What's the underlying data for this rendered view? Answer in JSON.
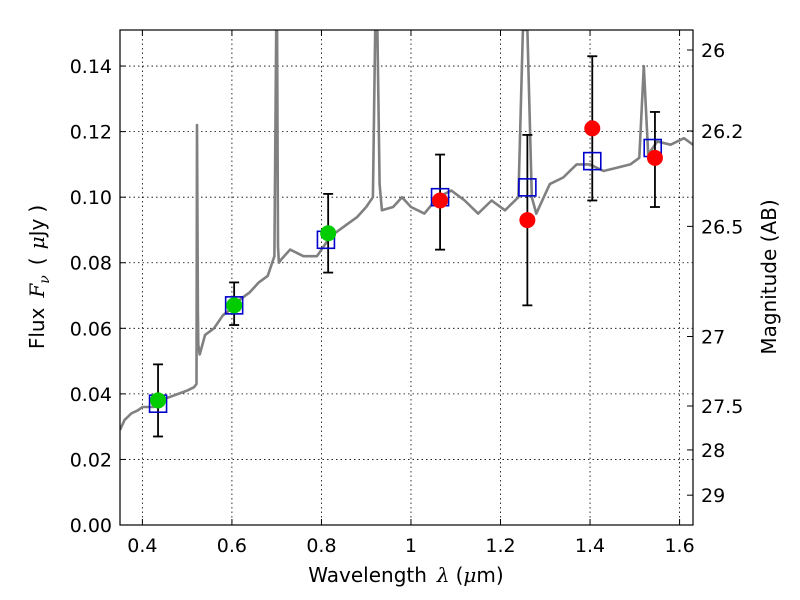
{
  "chart_data": {
    "type": "scatter",
    "xlabel_text": "Wavelength",
    "xlabel_symbol": "λ",
    "xlabel_unit_open": "(",
    "xlabel_unit_mu": "μ",
    "xlabel_unit_rest": "m)",
    "ylabel_text": "Flux",
    "ylabel_symbol": "F",
    "ylabel_symbol_sub": "ν",
    "ylabel_unit_open": "(",
    "ylabel_unit_mu": "μ",
    "ylabel_unit_rest": "Jy",
    "ylabel_unit_close": ")",
    "y2label": "Magnitude (AB)",
    "xlim": [
      0.35,
      1.63
    ],
    "ylim": [
      0.0,
      0.151
    ],
    "grid": true,
    "x_ticks": [
      {
        "value": 0.4,
        "label": "0.4"
      },
      {
        "value": 0.6,
        "label": "0.6"
      },
      {
        "value": 0.8,
        "label": "0.8"
      },
      {
        "value": 1.0,
        "label": "1"
      },
      {
        "value": 1.2,
        "label": "1.2"
      },
      {
        "value": 1.4,
        "label": "1.4"
      },
      {
        "value": 1.6,
        "label": "1.6"
      }
    ],
    "y_ticks": [
      {
        "value": 0.0,
        "label": "0.00"
      },
      {
        "value": 0.02,
        "label": "0.02"
      },
      {
        "value": 0.04,
        "label": "0.04"
      },
      {
        "value": 0.06,
        "label": "0.06"
      },
      {
        "value": 0.08,
        "label": "0.08"
      },
      {
        "value": 0.1,
        "label": "0.10"
      },
      {
        "value": 0.12,
        "label": "0.12"
      },
      {
        "value": 0.14,
        "label": "0.14"
      }
    ],
    "y2_ticks": [
      {
        "flux": 0.1449,
        "label": "26"
      },
      {
        "flux": 0.1202,
        "label": "26.2"
      },
      {
        "flux": 0.0911,
        "label": "26.5"
      },
      {
        "flux": 0.0575,
        "label": "27"
      },
      {
        "flux": 0.0363,
        "label": "27.5"
      },
      {
        "flux": 0.0229,
        "label": "28"
      },
      {
        "flux": 0.0091,
        "label": "29"
      }
    ],
    "series": [
      {
        "name": "model_spectrum",
        "kind": "line",
        "color": "#808080",
        "x": [
          0.35,
          0.36,
          0.375,
          0.39,
          0.4,
          0.41,
          0.425,
          0.44,
          0.46,
          0.48,
          0.5,
          0.515,
          0.521,
          0.522,
          0.524,
          0.525,
          0.528,
          0.54,
          0.56,
          0.58,
          0.6,
          0.62,
          0.64,
          0.66,
          0.68,
          0.695,
          0.699,
          0.701,
          0.703,
          0.705,
          0.71,
          0.73,
          0.76,
          0.79,
          0.82,
          0.85,
          0.88,
          0.9,
          0.915,
          0.92,
          0.925,
          0.93,
          0.935,
          0.96,
          0.98,
          1.0,
          1.03,
          1.06,
          1.09,
          1.12,
          1.15,
          1.18,
          1.21,
          1.24,
          1.25,
          1.26,
          1.27,
          1.28,
          1.29,
          1.31,
          1.34,
          1.37,
          1.4,
          1.43,
          1.46,
          1.49,
          1.51,
          1.52,
          1.53,
          1.55,
          1.58,
          1.61,
          1.63
        ],
        "values": [
          0.029,
          0.032,
          0.034,
          0.035,
          0.036,
          0.036,
          0.036,
          0.038,
          0.039,
          0.04,
          0.041,
          0.042,
          0.043,
          0.122,
          0.065,
          0.055,
          0.052,
          0.058,
          0.06,
          0.064,
          0.066,
          0.069,
          0.071,
          0.074,
          0.076,
          0.082,
          0.151,
          0.151,
          0.085,
          0.08,
          0.081,
          0.084,
          0.082,
          0.082,
          0.088,
          0.091,
          0.094,
          0.097,
          0.1,
          0.151,
          0.151,
          0.104,
          0.096,
          0.097,
          0.1,
          0.097,
          0.095,
          0.1,
          0.102,
          0.099,
          0.095,
          0.099,
          0.096,
          0.1,
          0.151,
          0.151,
          0.1,
          0.095,
          0.098,
          0.104,
          0.106,
          0.11,
          0.11,
          0.108,
          0.109,
          0.11,
          0.112,
          0.14,
          0.113,
          0.117,
          0.116,
          0.118,
          0.116
        ]
      },
      {
        "name": "model_photometry",
        "kind": "square",
        "color": "#0000cc",
        "x": [
          0.435,
          0.605,
          0.81,
          1.065,
          1.26,
          1.405,
          1.54
        ],
        "values": [
          0.037,
          0.067,
          0.087,
          0.1,
          0.103,
          0.111,
          0.115
        ]
      },
      {
        "name": "observed_optical",
        "kind": "circle",
        "color": "#00cc00",
        "x": [
          0.435,
          0.605,
          0.815
        ],
        "values": [
          0.038,
          0.067,
          0.089
        ],
        "err_low": [
          0.011,
          0.006,
          0.012
        ],
        "err_high": [
          0.011,
          0.007,
          0.012
        ]
      },
      {
        "name": "observed_nir",
        "kind": "circle",
        "color": "#ff0000",
        "x": [
          1.065,
          1.26,
          1.405,
          1.545
        ],
        "values": [
          0.099,
          0.093,
          0.121,
          0.112
        ],
        "err_low": [
          0.015,
          0.026,
          0.022,
          0.015
        ],
        "err_high": [
          0.014,
          0.026,
          0.022,
          0.014
        ]
      }
    ]
  }
}
